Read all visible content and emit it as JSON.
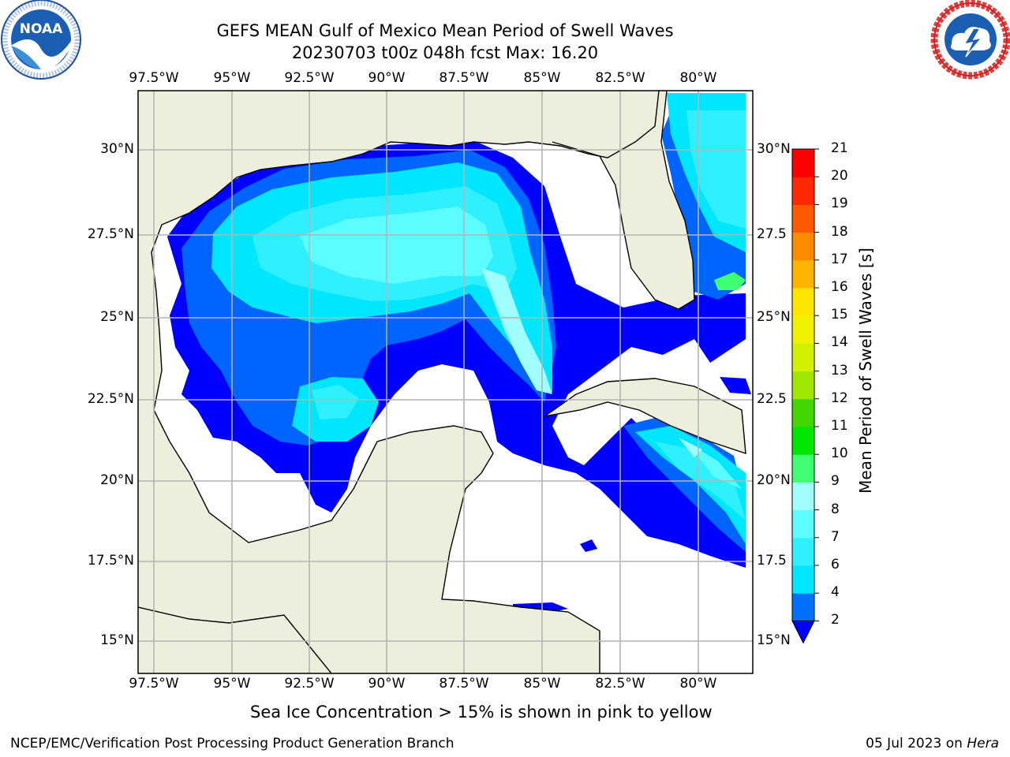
{
  "header": {
    "title": "GEFS MEAN Gulf of Mexico Mean Period of Swell Waves",
    "subtitle": "20230703 t00z 048h fcst   Max: 16.20"
  },
  "logos": {
    "left": {
      "name": "NOAA",
      "ring_text": "NATIONAL OCEANIC AND ATMOSPHERIC ADMINISTRATION · U.S. DEPARTMENT OF COMMERCE"
    },
    "right": {
      "name": "NATIONAL WEATHER SERVICE"
    }
  },
  "map": {
    "lon_labels": [
      "97.5°W",
      "95°W",
      "92.5°W",
      "90°W",
      "87.5°W",
      "85°W",
      "82.5°W",
      "80°W"
    ],
    "lat_labels_left": [
      "30°N",
      "27.5°N",
      "25°N",
      "22.5°N",
      "20°N",
      "17.5°N",
      "15°N"
    ],
    "lat_labels_right": [
      "30°N",
      "27.5",
      "25°N",
      "22.5",
      "20°N",
      "17.5",
      "15°N"
    ],
    "colors": {
      "land": "#eeeedc",
      "water": "#ffffff",
      "grid": "#b4b4b4",
      "coast": "#000000"
    }
  },
  "colorbar": {
    "label": "Mean Period of Swell Waves [s]",
    "ticks": [
      "2",
      "4",
      "6",
      "7",
      "8",
      "9",
      "10",
      "11",
      "12",
      "13",
      "14",
      "15",
      "16",
      "17",
      "18",
      "19",
      "20",
      "21"
    ],
    "colors": [
      "#0000ff",
      "#0070ff",
      "#00e6ff",
      "#30f0ff",
      "#5cfdff",
      "#a0ffff",
      "#40ff70",
      "#00e600",
      "#40d800",
      "#a0e600",
      "#d2f000",
      "#f0f000",
      "#ffe600",
      "#ffb400",
      "#ff8c00",
      "#ff5a00",
      "#ff2800",
      "#ff0000"
    ]
  },
  "field_colors": {
    "p2": "#0000ff",
    "p4": "#0064ff",
    "p6": "#00e6ff",
    "p7": "#30f0ff",
    "p8": "#5cfdff",
    "p9": "#a0ffff",
    "p10": "#40ff70",
    "p11": "#00e600",
    "p13": "#a0e600",
    "p15": "#f0f000",
    "p16": "#ffd200",
    "p17": "#ffb400"
  },
  "note": "Sea Ice Concentration > 15% is shown in pink to yellow",
  "footer": {
    "left": "NCEP/EMC/Verification Post Processing Product Generation Branch",
    "right_prefix": "05 Jul 2023 on ",
    "right_host": "Hera"
  }
}
